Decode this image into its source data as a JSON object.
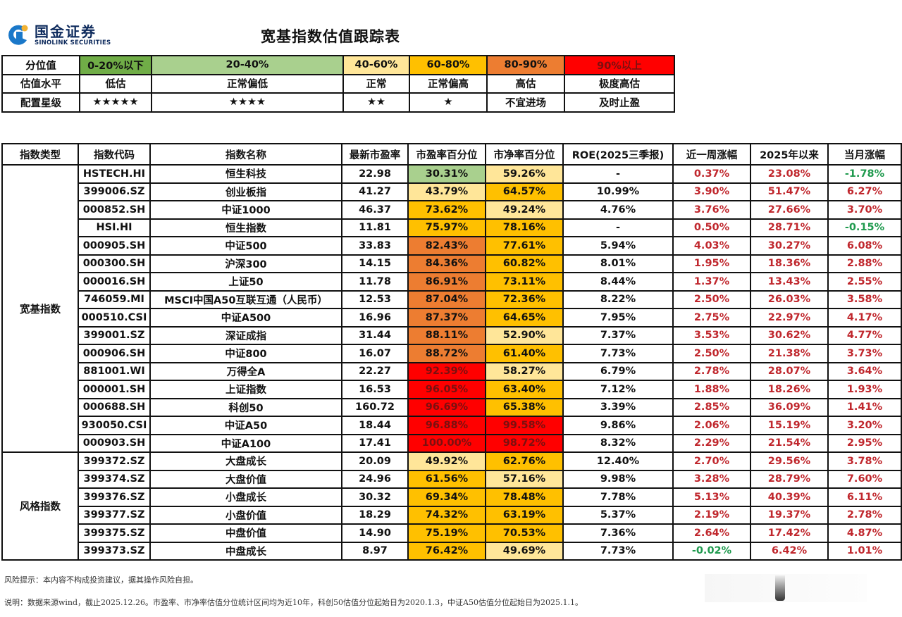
{
  "header": {
    "logo_cn": "国金证券",
    "logo_en": "SINOLINK SECURITIES",
    "title": "宽基指数估值跟踪表"
  },
  "legend": {
    "row_labels": [
      "分位值",
      "估值水平",
      "配置星级"
    ],
    "bands": [
      {
        "range": "0-20%以下",
        "level": "低估",
        "stars": "★★★★★",
        "color": "#70ad47"
      },
      {
        "range": "20-40%",
        "level": "正常偏低",
        "stars": "★★★★",
        "color": "#a9d08e"
      },
      {
        "range": "40-60%",
        "level": "正常",
        "stars": "★★",
        "color": "#ffe699"
      },
      {
        "range": "60-80%",
        "level": "正常偏高",
        "stars": "★",
        "color": "#ffc000"
      },
      {
        "range": "80-90%",
        "level": "高估",
        "stars": "不宜进场",
        "color": "#ed7d31"
      },
      {
        "range": "90%以上",
        "level": "极度高估",
        "stars": "及时止盈",
        "color": "#ff0000"
      }
    ]
  },
  "table": {
    "headers": [
      "指数类型",
      "指数代码",
      "指数名称",
      "最新市盈率",
      "市盈率百分位",
      "市净率百分位",
      "ROE(2025三季报)",
      "近一周涨幅",
      "2025年以来",
      "当月涨幅"
    ],
    "groups": [
      {
        "name": "宽基指数",
        "rows": [
          {
            "code": "HSTECH.HI",
            "name": "恒生科技",
            "pe": "22.98",
            "pe_pct": "30.31%",
            "pe_c": "c-green-light",
            "pb_pct": "59.26%",
            "pb_c": "c-yellow-light",
            "roe": "-",
            "week": "0.37%",
            "week_c": "red",
            "ytd": "23.08%",
            "ytd_c": "red",
            "month": "-1.78%",
            "month_c": "green"
          },
          {
            "code": "399006.SZ",
            "name": "创业板指",
            "pe": "41.27",
            "pe_pct": "43.79%",
            "pe_c": "c-yellow-light",
            "pb_pct": "64.57%",
            "pb_c": "c-yellow",
            "roe": "10.99%",
            "week": "3.90%",
            "week_c": "red",
            "ytd": "51.47%",
            "ytd_c": "red",
            "month": "6.27%",
            "month_c": "red"
          },
          {
            "code": "000852.SH",
            "name": "中证1000",
            "pe": "46.37",
            "pe_pct": "73.62%",
            "pe_c": "c-yellow",
            "pb_pct": "49.24%",
            "pb_c": "c-yellow-light",
            "roe": "4.76%",
            "week": "3.76%",
            "week_c": "red",
            "ytd": "27.66%",
            "ytd_c": "red",
            "month": "3.70%",
            "month_c": "red"
          },
          {
            "code": "HSI.HI",
            "name": "恒生指数",
            "pe": "11.81",
            "pe_pct": "75.97%",
            "pe_c": "c-yellow",
            "pb_pct": "78.16%",
            "pb_c": "c-yellow",
            "roe": "-",
            "week": "0.50%",
            "week_c": "red",
            "ytd": "28.71%",
            "ytd_c": "red",
            "month": "-0.15%",
            "month_c": "green"
          },
          {
            "code": "000905.SH",
            "name": "中证500",
            "pe": "33.83",
            "pe_pct": "82.43%",
            "pe_c": "c-orange",
            "pb_pct": "77.61%",
            "pb_c": "c-yellow",
            "roe": "5.94%",
            "week": "4.03%",
            "week_c": "red",
            "ytd": "30.27%",
            "ytd_c": "red",
            "month": "6.08%",
            "month_c": "red"
          },
          {
            "code": "000300.SH",
            "name": "沪深300",
            "pe": "14.15",
            "pe_pct": "84.36%",
            "pe_c": "c-orange",
            "pb_pct": "60.82%",
            "pb_c": "c-yellow",
            "roe": "8.01%",
            "week": "1.95%",
            "week_c": "red",
            "ytd": "18.36%",
            "ytd_c": "red",
            "month": "2.88%",
            "month_c": "red"
          },
          {
            "code": "000016.SH",
            "name": "上证50",
            "pe": "11.78",
            "pe_pct": "86.91%",
            "pe_c": "c-orange",
            "pb_pct": "73.11%",
            "pb_c": "c-yellow",
            "roe": "8.44%",
            "week": "1.37%",
            "week_c": "red",
            "ytd": "13.43%",
            "ytd_c": "red",
            "month": "2.55%",
            "month_c": "red"
          },
          {
            "code": "746059.MI",
            "name": "MSCI中国A50互联互通（人民币）",
            "pe": "12.53",
            "pe_pct": "87.04%",
            "pe_c": "c-orange",
            "pb_pct": "72.36%",
            "pb_c": "c-yellow",
            "roe": "8.22%",
            "week": "2.50%",
            "week_c": "red",
            "ytd": "26.03%",
            "ytd_c": "red",
            "month": "3.58%",
            "month_c": "red"
          },
          {
            "code": "000510.CSI",
            "name": "中证A500",
            "pe": "16.96",
            "pe_pct": "87.37%",
            "pe_c": "c-orange",
            "pb_pct": "64.65%",
            "pb_c": "c-yellow",
            "roe": "7.95%",
            "week": "2.75%",
            "week_c": "red",
            "ytd": "22.97%",
            "ytd_c": "red",
            "month": "4.17%",
            "month_c": "red"
          },
          {
            "code": "399001.SZ",
            "name": "深证成指",
            "pe": "31.44",
            "pe_pct": "88.11%",
            "pe_c": "c-orange",
            "pb_pct": "52.90%",
            "pb_c": "c-yellow-light",
            "roe": "7.37%",
            "week": "3.53%",
            "week_c": "red",
            "ytd": "30.62%",
            "ytd_c": "red",
            "month": "4.77%",
            "month_c": "red"
          },
          {
            "code": "000906.SH",
            "name": "中证800",
            "pe": "16.07",
            "pe_pct": "88.72%",
            "pe_c": "c-orange",
            "pb_pct": "61.40%",
            "pb_c": "c-yellow",
            "roe": "7.73%",
            "week": "2.50%",
            "week_c": "red",
            "ytd": "21.38%",
            "ytd_c": "red",
            "month": "3.73%",
            "month_c": "red"
          },
          {
            "code": "881001.WI",
            "name": "万得全A",
            "pe": "22.27",
            "pe_pct": "92.39%",
            "pe_c": "c-red",
            "pb_pct": "58.27%",
            "pb_c": "c-yellow-light",
            "roe": "6.79%",
            "week": "2.78%",
            "week_c": "red",
            "ytd": "28.07%",
            "ytd_c": "red",
            "month": "3.64%",
            "month_c": "red"
          },
          {
            "code": "000001.SH",
            "name": "上证指数",
            "pe": "16.53",
            "pe_pct": "96.05%",
            "pe_c": "c-red",
            "pb_pct": "63.40%",
            "pb_c": "c-yellow",
            "roe": "7.12%",
            "week": "1.88%",
            "week_c": "red",
            "ytd": "18.26%",
            "ytd_c": "red",
            "month": "1.93%",
            "month_c": "red"
          },
          {
            "code": "000688.SH",
            "name": "科创50",
            "pe": "160.72",
            "pe_pct": "96.69%",
            "pe_c": "c-red",
            "pb_pct": "65.38%",
            "pb_c": "c-yellow",
            "roe": "3.39%",
            "week": "2.85%",
            "week_c": "red",
            "ytd": "36.09%",
            "ytd_c": "red",
            "month": "1.41%",
            "month_c": "red"
          },
          {
            "code": "930050.CSI",
            "name": "中证A50",
            "pe": "18.44",
            "pe_pct": "96.88%",
            "pe_c": "c-red",
            "pb_pct": "99.58%",
            "pb_c": "c-red",
            "roe": "9.86%",
            "week": "2.06%",
            "week_c": "red",
            "ytd": "15.19%",
            "ytd_c": "red",
            "month": "3.20%",
            "month_c": "red"
          },
          {
            "code": "000903.SH",
            "name": "中证A100",
            "pe": "17.41",
            "pe_pct": "100.00%",
            "pe_c": "c-red",
            "pb_pct": "98.72%",
            "pb_c": "c-red",
            "roe": "8.32%",
            "week": "2.29%",
            "week_c": "red",
            "ytd": "21.54%",
            "ytd_c": "red",
            "month": "2.95%",
            "month_c": "red"
          }
        ]
      },
      {
        "name": "风格指数",
        "rows": [
          {
            "code": "399372.SZ",
            "name": "大盘成长",
            "pe": "20.09",
            "pe_pct": "49.92%",
            "pe_c": "c-yellow-light",
            "pb_pct": "62.76%",
            "pb_c": "c-yellow",
            "roe": "12.40%",
            "week": "2.70%",
            "week_c": "red",
            "ytd": "29.56%",
            "ytd_c": "red",
            "month": "3.78%",
            "month_c": "red"
          },
          {
            "code": "399374.SZ",
            "name": "大盘价值",
            "pe": "24.96",
            "pe_pct": "61.56%",
            "pe_c": "c-yellow",
            "pb_pct": "57.16%",
            "pb_c": "c-yellow-light",
            "roe": "9.98%",
            "week": "3.28%",
            "week_c": "red",
            "ytd": "28.79%",
            "ytd_c": "red",
            "month": "7.60%",
            "month_c": "red"
          },
          {
            "code": "399376.SZ",
            "name": "小盘成长",
            "pe": "30.32",
            "pe_pct": "69.34%",
            "pe_c": "c-yellow",
            "pb_pct": "78.48%",
            "pb_c": "c-yellow",
            "roe": "7.78%",
            "week": "5.13%",
            "week_c": "red",
            "ytd": "40.39%",
            "ytd_c": "red",
            "month": "6.11%",
            "month_c": "red"
          },
          {
            "code": "399377.SZ",
            "name": "小盘价值",
            "pe": "18.29",
            "pe_pct": "74.32%",
            "pe_c": "c-yellow",
            "pb_pct": "63.19%",
            "pb_c": "c-yellow",
            "roe": "5.37%",
            "week": "2.19%",
            "week_c": "red",
            "ytd": "19.37%",
            "ytd_c": "red",
            "month": "2.78%",
            "month_c": "red"
          },
          {
            "code": "399375.SZ",
            "name": "中盘价值",
            "pe": "14.90",
            "pe_pct": "75.19%",
            "pe_c": "c-yellow",
            "pb_pct": "70.53%",
            "pb_c": "c-yellow",
            "roe": "7.36%",
            "week": "2.64%",
            "week_c": "red",
            "ytd": "17.42%",
            "ytd_c": "red",
            "month": "4.87%",
            "month_c": "red"
          },
          {
            "code": "399373.SZ",
            "name": "中盘成长",
            "pe": "8.97",
            "pe_pct": "76.42%",
            "pe_c": "c-yellow",
            "pb_pct": "49.69%",
            "pb_c": "c-yellow-light",
            "roe": "7.73%",
            "week": "-0.02%",
            "week_c": "green",
            "ytd": "6.42%",
            "ytd_c": "red",
            "month": "1.01%",
            "month_c": "red"
          }
        ]
      }
    ]
  },
  "footer": {
    "risk": "风险提示：本内容不构成投资建议，据其操作风险自担。",
    "note": "说明：数据来源wind，截止2025.12.26。市盈率、市净率估值分位统计区间均为近10年，科创50估值分位起始日为2020.1.3，中证A50估值分位起始日为2025.1.1。"
  }
}
